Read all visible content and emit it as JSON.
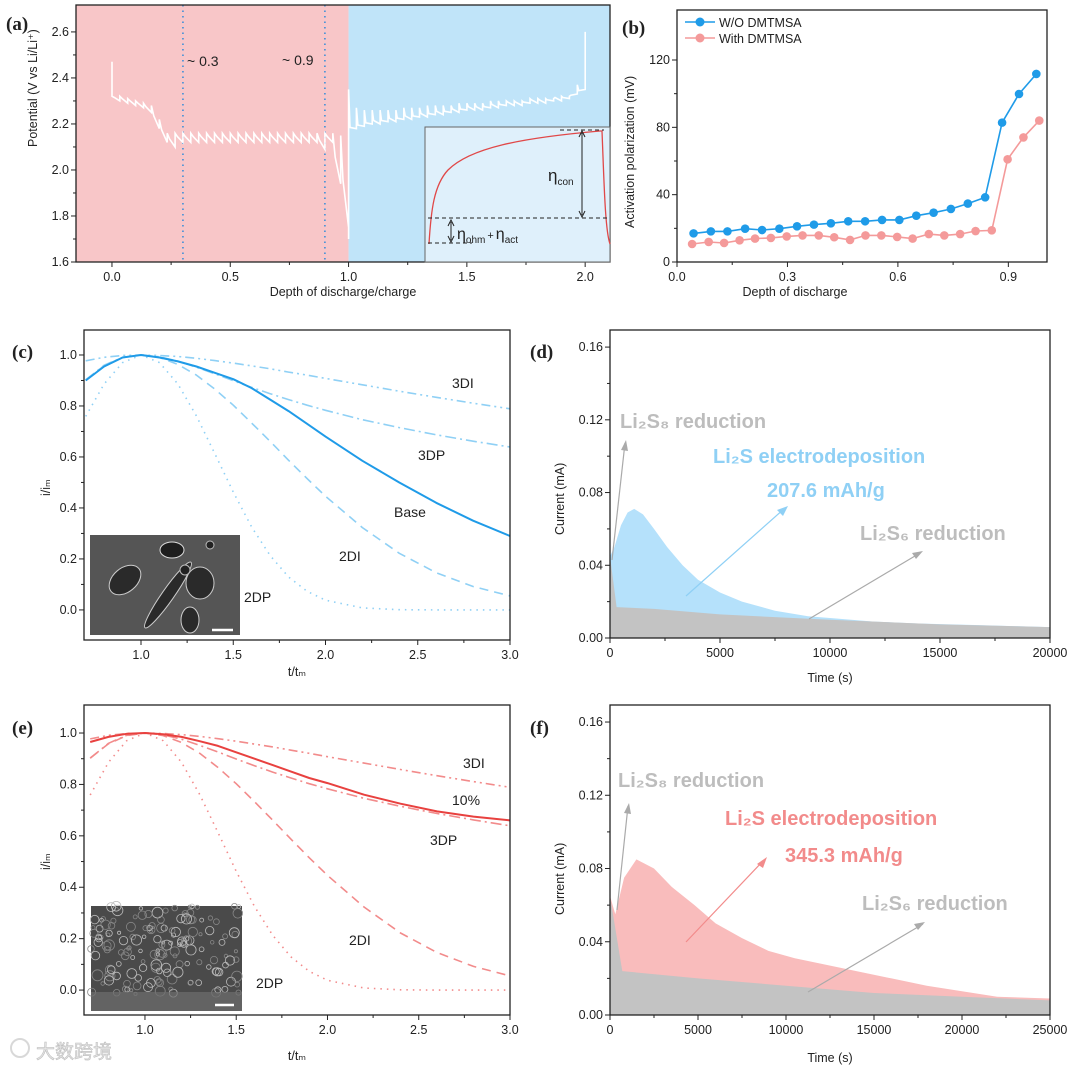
{
  "colors": {
    "blue": "#1f9be8",
    "blue_light": "#8fd0f5",
    "blue_fill": "#b5e1fb",
    "red": "#e8413f",
    "red_light": "#f28b8b",
    "pink_fill": "#f9bcbc",
    "gray_fill": "#c3c3c3",
    "gray_text": "#bdbdbd",
    "bg_pink": "#f8c6c8",
    "bg_blue": "#c0e4f9"
  },
  "watermark": "大数跨境",
  "chart_data": [
    {
      "panel": "(a)",
      "type": "line",
      "xlabel": "Depth of discharge/charge",
      "ylabel": "Potential (V vs Li/Li⁺)",
      "xlim": [
        -0.152,
        2.105
      ],
      "ylim": [
        1.6,
        2.717
      ],
      "xticks": [
        "0.0",
        "0.5",
        "1.0",
        "1.5",
        "2.0"
      ],
      "yticks": [
        "1.6",
        "1.8",
        "2.0",
        "2.2",
        "2.4",
        "2.6"
      ],
      "regions": [
        {
          "name": "discharge",
          "from": -0.152,
          "to": 1.0
        },
        {
          "name": "charge",
          "from": 1.0,
          "to": 2.105
        }
      ],
      "vlines": [
        0.3,
        0.9
      ],
      "annotations": [
        "~ 0.3",
        "~ 0.9"
      ],
      "discharge": {
        "ocv": 2.47,
        "rest": [
          2.32,
          2.32,
          2.31,
          2.3,
          2.29,
          2.28,
          2.22,
          2.16,
          2.16,
          2.16,
          2.16,
          2.16,
          2.16,
          2.16,
          2.16,
          2.16,
          2.16,
          2.16,
          2.16,
          2.16,
          2.16,
          2.16,
          2.16,
          2.16,
          2.16,
          2.16,
          2.16,
          2.16,
          2.16,
          2.15,
          2.15
        ],
        "pulse_end": [
          2.3,
          2.29,
          2.28,
          2.27,
          2.25,
          2.18,
          2.12,
          2.1,
          2.12,
          2.12,
          2.12,
          2.12,
          2.12,
          2.12,
          2.12,
          2.12,
          2.12,
          2.12,
          2.12,
          2.12,
          2.12,
          2.12,
          2.12,
          2.12,
          2.12,
          2.12,
          2.09,
          2.12,
          1.94,
          1.75
        ],
        "final": 1.7
      },
      "charge": {
        "peaks": [
          2.35,
          2.27,
          2.26,
          2.26,
          2.26,
          2.26,
          2.26,
          2.27,
          2.27,
          2.27,
          2.28,
          2.28,
          2.28,
          2.28,
          2.29,
          2.29,
          2.29,
          2.29,
          2.3,
          2.3,
          2.3,
          2.3,
          2.3,
          2.31,
          2.31,
          2.31,
          2.31,
          2.32,
          2.32,
          2.37,
          2.6
        ],
        "lows": [
          2.17,
          2.18,
          2.19,
          2.2,
          2.2,
          2.21,
          2.21,
          2.22,
          2.22,
          2.23,
          2.23,
          2.24,
          2.24,
          2.25,
          2.25,
          2.26,
          2.26,
          2.26,
          2.27,
          2.27,
          2.28,
          2.28,
          2.28,
          2.29,
          2.29,
          2.29,
          2.3,
          2.3,
          2.31,
          2.33,
          2.35
        ]
      },
      "inset": {
        "eta": "η",
        "con": "con",
        "ohm": "ohm",
        "plus": "+",
        "act": "act"
      }
    },
    {
      "panel": "(b)",
      "type": "line",
      "xlabel": "Depth of discharge",
      "ylabel": "Activation polarization (mV)",
      "xlim": [
        0,
        1.005
      ],
      "ylim": [
        0,
        149.7
      ],
      "xticks": [
        "0.0",
        "0.3",
        "0.6",
        "0.9"
      ],
      "xtick_values": [
        0,
        0.3,
        0.6,
        0.9
      ],
      "yticks": [
        "0",
        "40",
        "80",
        "120"
      ],
      "ytick_values": [
        0,
        40,
        80,
        120
      ],
      "legend": "top-left",
      "series": [
        {
          "name": "W/O DMTMSA",
          "x": [
            0.045,
            0.092,
            0.137,
            0.185,
            0.231,
            0.278,
            0.326,
            0.372,
            0.418,
            0.465,
            0.511,
            0.557,
            0.604,
            0.65,
            0.697,
            0.744,
            0.79,
            0.837,
            0.883,
            0.929,
            0.976
          ],
          "y": [
            17,
            18.2,
            18.2,
            19.8,
            19,
            19.8,
            21.2,
            22.2,
            23,
            24.2,
            24.2,
            25,
            25,
            27.5,
            29.3,
            31.5,
            34.7,
            38.4,
            82.8,
            99.8,
            111.7
          ]
        },
        {
          "name": "With DMTMSA",
          "x": [
            0.041,
            0.086,
            0.128,
            0.17,
            0.212,
            0.255,
            0.298,
            0.341,
            0.385,
            0.427,
            0.47,
            0.512,
            0.555,
            0.598,
            0.64,
            0.684,
            0.726,
            0.769,
            0.811,
            0.855,
            0.898,
            0.941,
            0.984
          ],
          "y": [
            10.7,
            11.9,
            11.3,
            12.9,
            13.9,
            14.3,
            15.2,
            15.8,
            15.8,
            14.7,
            13.1,
            15.8,
            15.8,
            14.9,
            13.9,
            16.6,
            15.8,
            16.6,
            18.4,
            18.8,
            61,
            74,
            84
          ]
        }
      ]
    },
    {
      "panel": "(c)",
      "type": "line",
      "xlabel": "t/tₘ",
      "ylabel": "i/iₘ",
      "xlim": [
        0.691,
        3.0
      ],
      "ylim": [
        -0.118,
        1.098
      ],
      "xticks": [
        "1.0",
        "1.5",
        "2.0",
        "2.5",
        "3.0"
      ],
      "yticks": [
        "0.0",
        "0.2",
        "0.4",
        "0.6",
        "0.8",
        "1.0"
      ],
      "t": [
        0.7,
        0.8,
        0.9,
        1.0,
        1.1,
        1.2,
        1.3,
        1.4,
        1.5,
        1.6,
        1.7,
        1.8,
        1.9,
        2.0,
        2.2,
        2.4,
        2.6,
        2.8,
        3.0
      ],
      "series": [
        {
          "name": "3DI",
          "style": "dashdotdot",
          "y": [
            0.977,
            0.991,
            0.998,
            1,
            0.998,
            0.994,
            0.987,
            0.978,
            0.968,
            0.957,
            0.946,
            0.933,
            0.921,
            0.908,
            0.883,
            0.858,
            0.834,
            0.811,
            0.789
          ]
        },
        {
          "name": "3DP",
          "style": "dashdot",
          "y": [
            0.902,
            0.96,
            0.991,
            1,
            0.993,
            0.976,
            0.952,
            0.926,
            0.899,
            0.873,
            0.848,
            0.825,
            0.803,
            0.783,
            0.746,
            0.715,
            0.687,
            0.662,
            0.639
          ]
        },
        {
          "name": "2DI",
          "style": "dashed",
          "y": [
            0.903,
            0.958,
            0.99,
            1,
            0.99,
            0.963,
            0.921,
            0.866,
            0.803,
            0.733,
            0.661,
            0.587,
            0.515,
            0.446,
            0.323,
            0.222,
            0.146,
            0.092,
            0.055
          ]
        },
        {
          "name": "2DP",
          "style": "dotted",
          "y": [
            0.759,
            0.886,
            0.97,
            1,
            0.97,
            0.886,
            0.761,
            0.613,
            0.462,
            0.325,
            0.213,
            0.129,
            0.073,
            0.038,
            0.008,
            0.001,
            0,
            0,
            0
          ]
        },
        {
          "name": "Base",
          "style": "solid",
          "y": [
            0.9,
            0.955,
            0.99,
            1,
            0.99,
            0.975,
            0.955,
            0.93,
            0.905,
            0.87,
            0.825,
            0.78,
            0.73,
            0.68,
            0.585,
            0.5,
            0.42,
            0.35,
            0.29
          ]
        }
      ]
    },
    {
      "panel": "(d)",
      "type": "area",
      "xlabel": "Time (s)",
      "ylabel": "Current (mA)",
      "xlim": [
        0,
        20000
      ],
      "ylim": [
        0,
        0.1694
      ],
      "xticks": [
        "0",
        "5000",
        "10000",
        "15000",
        "20000"
      ],
      "xtick_values": [
        0,
        5000,
        10000,
        15000,
        20000
      ],
      "yticks": [
        "0.00",
        "0.04",
        "0.08",
        "0.12",
        "0.16"
      ],
      "ytick_values": [
        0,
        0.04,
        0.08,
        0.12,
        0.16
      ],
      "total": {
        "x": [
          0,
          200,
          500,
          800,
          1100,
          1500,
          2000,
          2600,
          3300,
          4000,
          5000,
          6000,
          7500,
          9000,
          10000,
          12000,
          14000,
          17000,
          20000
        ],
        "y": [
          0.045,
          0.05,
          0.062,
          0.069,
          0.071,
          0.068,
          0.06,
          0.05,
          0.04,
          0.032,
          0.025,
          0.02,
          0.015,
          0.012,
          0.011,
          0.009,
          0.008,
          0.007,
          0.006
        ]
      },
      "li2s6": {
        "x": [
          0,
          300,
          2000,
          5000,
          10000,
          15000,
          20000
        ],
        "y": [
          0.045,
          0.017,
          0.016,
          0.013,
          0.01,
          0.0075,
          0.006
        ]
      },
      "annotations": {
        "li2s8": "Li₂S₈ reduction",
        "li2s": "Li₂S electrodeposition",
        "capacity": "207.6 mAh/g",
        "li2s6": "Li₂S₆ reduction"
      }
    },
    {
      "panel": "(e)",
      "type": "line",
      "xlabel": "t/tₘ",
      "ylabel": "i/iₘ",
      "xlim": [
        0.666,
        3.0
      ],
      "ylim": [
        -0.097,
        1.109
      ],
      "xticks": [
        "1.0",
        "1.5",
        "2.0",
        "2.5",
        "3.0"
      ],
      "yticks": [
        "0.0",
        "0.2",
        "0.4",
        "0.6",
        "0.8",
        "1.0"
      ],
      "t": [
        0.7,
        0.8,
        0.9,
        1.0,
        1.1,
        1.2,
        1.3,
        1.4,
        1.5,
        1.6,
        1.7,
        1.8,
        1.9,
        2.0,
        2.2,
        2.4,
        2.6,
        2.8,
        3.0
      ],
      "series": [
        {
          "name": "3DI",
          "style": "dashdotdot",
          "y": [
            0.977,
            0.991,
            0.998,
            1,
            0.998,
            0.994,
            0.987,
            0.978,
            0.968,
            0.957,
            0.946,
            0.933,
            0.921,
            0.908,
            0.883,
            0.858,
            0.834,
            0.811,
            0.789
          ]
        },
        {
          "name": "3DP",
          "style": "dashdot",
          "y": [
            0.902,
            0.96,
            0.991,
            1,
            0.993,
            0.976,
            0.952,
            0.926,
            0.899,
            0.873,
            0.848,
            0.825,
            0.803,
            0.783,
            0.746,
            0.715,
            0.687,
            0.662,
            0.639
          ]
        },
        {
          "name": "2DI",
          "style": "dashed",
          "y": [
            0.903,
            0.958,
            0.99,
            1,
            0.99,
            0.963,
            0.921,
            0.866,
            0.803,
            0.733,
            0.661,
            0.587,
            0.515,
            0.446,
            0.323,
            0.222,
            0.146,
            0.092,
            0.055
          ]
        },
        {
          "name": "2DP",
          "style": "dotted",
          "y": [
            0.759,
            0.886,
            0.97,
            1,
            0.97,
            0.886,
            0.761,
            0.613,
            0.462,
            0.325,
            0.213,
            0.129,
            0.073,
            0.038,
            0.008,
            0.001,
            0,
            0,
            0
          ]
        },
        {
          "name": "10%",
          "style": "solid",
          "y": [
            0.965,
            0.985,
            0.997,
            1,
            0.995,
            0.985,
            0.968,
            0.95,
            0.925,
            0.9,
            0.875,
            0.85,
            0.825,
            0.805,
            0.76,
            0.725,
            0.695,
            0.675,
            0.66
          ]
        }
      ]
    },
    {
      "panel": "(f)",
      "type": "area",
      "xlabel": "Time (s)",
      "ylabel": "Current (mA)",
      "xlim": [
        0,
        25000
      ],
      "ylim": [
        0,
        0.1693
      ],
      "xticks": [
        "0",
        "5000",
        "10000",
        "15000",
        "20000",
        "25000"
      ],
      "xtick_values": [
        0,
        5000,
        10000,
        15000,
        20000,
        25000
      ],
      "yticks": [
        "0.00",
        "0.04",
        "0.08",
        "0.12",
        "0.16"
      ],
      "ytick_values": [
        0,
        0.04,
        0.08,
        0.12,
        0.16
      ],
      "total": {
        "x": [
          0,
          300,
          800,
          1500,
          2500,
          3500,
          4800,
          6000,
          7500,
          9000,
          10500,
          12000,
          14000,
          16000,
          18000,
          20000,
          22000,
          25000
        ],
        "y": [
          0.065,
          0.055,
          0.075,
          0.085,
          0.08,
          0.07,
          0.06,
          0.05,
          0.042,
          0.035,
          0.031,
          0.028,
          0.024,
          0.02,
          0.016,
          0.013,
          0.01,
          0.009
        ]
      },
      "li2s6": {
        "x": [
          0,
          700,
          5000,
          10000,
          15000,
          20000,
          25000
        ],
        "y": [
          0.065,
          0.024,
          0.02,
          0.016,
          0.012,
          0.01,
          0.008
        ]
      },
      "annotations": {
        "li2s8": "Li₂S₈ reduction",
        "li2s": "Li₂S electrodeposition",
        "capacity": "345.3 mAh/g",
        "li2s6": "Li₂S₆ reduction"
      }
    }
  ]
}
